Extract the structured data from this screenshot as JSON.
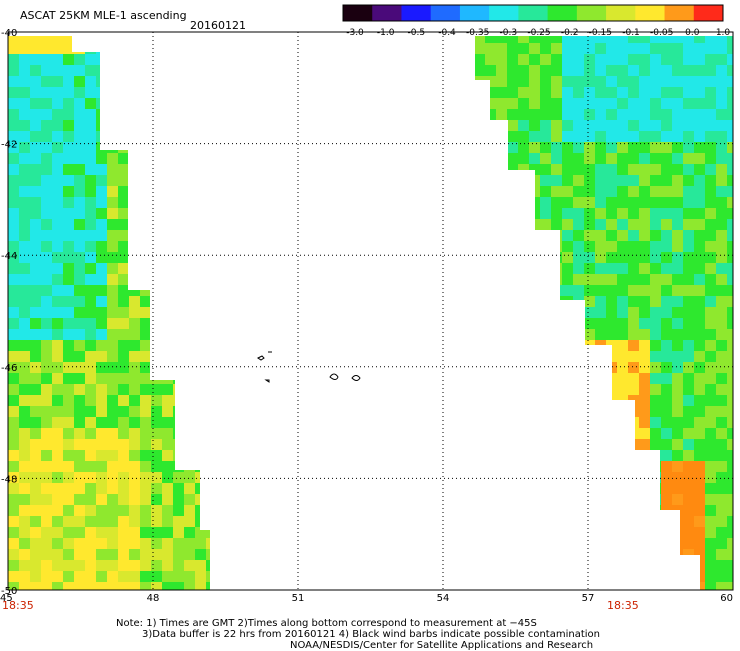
{
  "header": {
    "title": "ASCAT 25KM MLE-1 ascending",
    "date": "20160121"
  },
  "colorbar": {
    "labels": [
      "-3.0",
      "-1.0",
      "-0.5",
      "-0.4",
      "-0.35",
      "-0.3",
      "-0.25",
      "-0.2",
      "-0.15",
      "-0.1",
      "-0.05",
      "0.0",
      "1.0"
    ],
    "colors": [
      "#1a0010",
      "#4a0a7a",
      "#1a1aff",
      "#1f6bff",
      "#1fb8ff",
      "#22e8e8",
      "#27e89a",
      "#2ee82e",
      "#8fe82e",
      "#d9e82e",
      "#ffe82e",
      "#ff9a1a",
      "#ff2a1a"
    ]
  },
  "map": {
    "lat_labels": [
      "-40",
      "-42",
      "-44",
      "-46",
      "-48",
      "-50"
    ],
    "lon_labels": [
      "45",
      "48",
      "51",
      "54",
      "57",
      "60"
    ],
    "lat_range": [
      -50,
      -40
    ],
    "lon_range": [
      45,
      60
    ]
  },
  "pass_times": {
    "left": "18:35",
    "right": "18:35"
  },
  "footer": {
    "note_line1": "Note: 1) Times are GMT 2)Times along bottom correspond to measurement at −45S",
    "note_line2": "3)Data buffer is 22 hrs from 20160121 4) Black wind barbs indicate possible contamination",
    "credit": "NOAA/NESDIS/Center for Satellite Applications and Research"
  }
}
